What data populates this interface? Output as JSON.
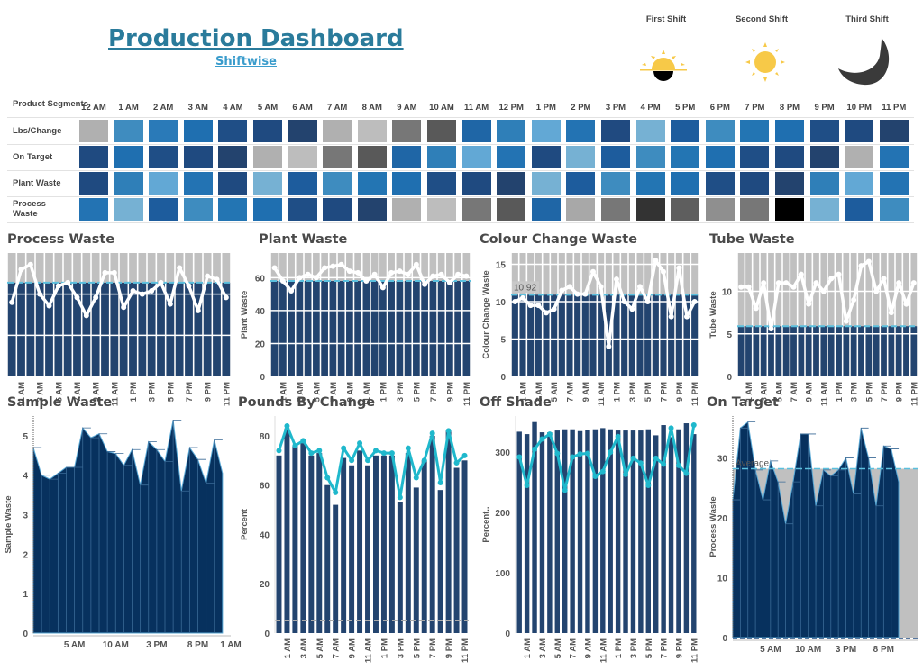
{
  "header": {
    "title": "Production Dashboard",
    "subtitle": "Shiftwise",
    "shifts": [
      {
        "label": "First Shift",
        "icon": "sunrise-icon"
      },
      {
        "label": "Second Shift",
        "icon": "sun-icon"
      },
      {
        "label": "Third Shift",
        "icon": "moon-icon"
      }
    ]
  },
  "heatmap": {
    "corner_label": "Product Segments",
    "hours": [
      "12 AM",
      "1 AM",
      "2 AM",
      "3 AM",
      "4 AM",
      "5 AM",
      "6 AM",
      "7 AM",
      "8 AM",
      "9 AM",
      "10 AM",
      "11 AM",
      "12 PM",
      "1 PM",
      "2 PM",
      "3 PM",
      "4 PM",
      "5 PM",
      "6 PM",
      "7 PM",
      "8 PM",
      "9 PM",
      "10 PM",
      "11 PM"
    ],
    "rows": [
      {
        "label": "Lbs/Change",
        "colors": [
          "#b0b0b0",
          "#3f8cbf",
          "#2a7ab8",
          "#1f6fb0",
          "#1f4e86",
          "#1f4a80",
          "#23436e",
          "#b0b0b0",
          "#bdbdbd",
          "#777777",
          "#595959",
          "#1f66a6",
          "#2f7fb8",
          "#62a8d5",
          "#2373b3",
          "#204a80",
          "#76b1d3",
          "#1d5c9d",
          "#3e8cbf",
          "#2375b3",
          "#1f6fb0",
          "#1f4e86",
          "#1f4a80",
          "#23436e"
        ]
      },
      {
        "label": "On Target",
        "colors": [
          "#1f4a80",
          "#1f6fb0",
          "#1f4e86",
          "#1f4a80",
          "#23436e",
          "#b0b0b0",
          "#bdbdbd",
          "#777777",
          "#595959",
          "#1f66a6",
          "#2f7fb8",
          "#62a8d5",
          "#2373b3",
          "#1f4a80",
          "#76b1d3",
          "#1d5c9d",
          "#3e8cbf",
          "#2375b3",
          "#1f6fb0",
          "#1f4e86",
          "#1f4a80",
          "#23436e",
          "#b0b0b0",
          "#2373b3"
        ]
      },
      {
        "label": "Plant Waste",
        "colors": [
          "#1f4a80",
          "#2f7fb8",
          "#62a8d5",
          "#2373b3",
          "#1f4a80",
          "#76b1d3",
          "#1d5c9d",
          "#3e8cbf",
          "#2375b3",
          "#1f6fb0",
          "#1f4e86",
          "#1f4a80",
          "#23436e",
          "#76b1d3",
          "#1d5c9d",
          "#3e8cbf",
          "#2375b3",
          "#1f6fb0",
          "#1f4e86",
          "#1f4a80",
          "#23436e",
          "#2f7fb8",
          "#62a8d5",
          "#2373b3"
        ]
      },
      {
        "label": "Process Waste",
        "colors": [
          "#2373b3",
          "#76b1d3",
          "#1d5c9d",
          "#3e8cbf",
          "#2375b3",
          "#1f6fb0",
          "#1f4e86",
          "#1f4a80",
          "#23436e",
          "#b0b0b0",
          "#bdbdbd",
          "#777777",
          "#595959",
          "#1f66a6",
          "#a8a8a8",
          "#777777",
          "#333333",
          "#5e5e5e",
          "#8f8f8f",
          "#777777",
          "#000000",
          "#76b1d3",
          "#1d5c9d",
          "#3e8cbf"
        ]
      }
    ]
  },
  "colors": {
    "bar": "#23446f",
    "area": "#07315e",
    "band": "#c0c0c0",
    "line_white": "#ffffff",
    "line_teal": "#1fb8cc",
    "ref": "#5bc0de"
  },
  "chart_data": [
    {
      "id": "process",
      "title": "Process Waste",
      "type": "bar+line",
      "style": "target",
      "ylabel": "",
      "ylim": [
        0,
        75
      ],
      "yticks": [],
      "grid": [
        25,
        50
      ],
      "x_ticks": [
        "1 AM",
        "3 AM",
        "5 AM",
        "7 AM",
        "9 AM",
        "11 AM",
        "1 PM",
        "3 PM",
        "5 PM",
        "7 PM",
        "9 PM",
        "11 PM"
      ],
      "bar_value": 57,
      "line": [
        45,
        65,
        68,
        50,
        43,
        55,
        57,
        48,
        37,
        48,
        63,
        63,
        42,
        52,
        50,
        52,
        57,
        44,
        66,
        55,
        40,
        61,
        59,
        48
      ]
    },
    {
      "id": "plant",
      "title": "Plant Waste",
      "type": "bar+line",
      "style": "target",
      "ylabel": "Plant Waste",
      "ylim": [
        0,
        75
      ],
      "yticks": [
        0,
        20,
        40,
        60
      ],
      "grid": [
        20,
        40,
        60
      ],
      "x_ticks": [
        "1 AM",
        "3 AM",
        "5 AM",
        "7 AM",
        "9 AM",
        "11 AM",
        "1 PM",
        "3 PM",
        "5 PM",
        "7 PM",
        "9 PM",
        "11 PM"
      ],
      "bar_value": 58,
      "line": [
        66,
        58,
        52,
        60,
        62,
        60,
        66,
        67,
        68,
        64,
        63,
        58,
        62,
        54,
        63,
        64,
        62,
        68,
        56,
        61,
        62,
        57,
        62,
        61
      ]
    },
    {
      "id": "colour",
      "title": "Colour Change Waste",
      "type": "bar+line",
      "style": "target",
      "ylabel": "Colour Change Waste",
      "ylim": [
        0,
        16.5
      ],
      "yticks": [
        0,
        5,
        10,
        15
      ],
      "grid": [
        5,
        10,
        15
      ],
      "x_ticks": [
        "1 AM",
        "3 AM",
        "5 AM",
        "7 AM",
        "9 AM",
        "11 AM",
        "1 PM",
        "3 PM",
        "5 PM",
        "7 PM",
        "9 PM",
        "11 PM"
      ],
      "bar_value": 10.92,
      "annotation": "10.92",
      "line": [
        10,
        10.5,
        9.5,
        9.5,
        8.5,
        9,
        11.5,
        12,
        11,
        11,
        14,
        12,
        4,
        13,
        10,
        9,
        12,
        10,
        15.5,
        14,
        8,
        14.5,
        8,
        10
      ]
    },
    {
      "id": "tube",
      "title": "Tube Waste",
      "type": "bar+line",
      "style": "target",
      "ylabel": "Tube Waste",
      "ylim": [
        0,
        14.5
      ],
      "yticks": [
        0,
        5,
        10
      ],
      "grid": [
        5,
        10
      ],
      "x_ticks": [
        "1 AM",
        "3 AM",
        "5 AM",
        "7 AM",
        "9 AM",
        "11 AM",
        "1 PM",
        "3 PM",
        "5 PM",
        "7 PM",
        "9 PM",
        "11 PM"
      ],
      "bar_value": 5.9,
      "line": [
        10.5,
        10.5,
        8,
        11,
        5.6,
        11,
        11,
        10.5,
        12,
        8.5,
        11,
        10,
        11.5,
        12,
        6.5,
        9,
        13,
        13.5,
        10,
        11.5,
        7.5,
        11,
        8.5,
        11
      ]
    },
    {
      "id": "sample",
      "title": "Sample Waste",
      "type": "area",
      "ylabel": "Sample Waste",
      "ylim": [
        0,
        5.5
      ],
      "yticks": [
        0,
        1,
        2,
        3,
        4,
        5
      ],
      "x_ticks": [
        "5 AM",
        "10 AM",
        "3 PM",
        "8 PM",
        "1 AM"
      ],
      "values": [
        4.7,
        4.0,
        3.9,
        4.05,
        4.2,
        4.2,
        5.2,
        4.95,
        5.05,
        4.6,
        4.55,
        4.25,
        4.65,
        3.75,
        4.85,
        4.65,
        4.35,
        5.4,
        3.6,
        4.7,
        4.4,
        3.8,
        4.9,
        4.05
      ]
    },
    {
      "id": "pounds",
      "title": "Pounds By Change",
      "type": "bar+line",
      "style": "plain",
      "ylabel": "Percent",
      "ylim": [
        0,
        88
      ],
      "yticks": [
        0,
        20,
        40,
        60,
        80
      ],
      "ref_value": 5,
      "x_ticks": [
        "1 AM",
        "3 AM",
        "5 AM",
        "7 AM",
        "9 AM",
        "11 AM",
        "1 PM",
        "3 PM",
        "5 PM",
        "7 PM",
        "9 PM",
        "11 PM"
      ],
      "bars": [
        72,
        83,
        76,
        77,
        72,
        73,
        60,
        52,
        71,
        68,
        74,
        68,
        72,
        72,
        72,
        53,
        73,
        59,
        70,
        80,
        58,
        82,
        67,
        70
      ],
      "line": [
        74,
        84,
        76,
        78,
        73,
        74,
        63,
        57,
        75,
        70,
        77,
        70,
        74,
        73,
        73,
        55,
        75,
        63,
        70,
        81,
        61,
        82,
        69,
        72
      ]
    },
    {
      "id": "offshade",
      "title": "Off Shade",
      "type": "bar+line",
      "style": "plain",
      "ylabel": "Percent..",
      "ylim": [
        0,
        360
      ],
      "yticks": [
        0,
        100,
        200,
        300
      ],
      "x_ticks": [
        "1 AM",
        "3 AM",
        "5 AM",
        "7 AM",
        "9 AM",
        "11 AM",
        "1 PM",
        "3 PM",
        "5 PM",
        "7 PM",
        "9 PM",
        "11 PM"
      ],
      "bars": [
        334,
        330,
        350,
        333,
        333,
        336,
        338,
        338,
        335,
        337,
        338,
        340,
        338,
        336,
        336,
        336,
        336,
        338,
        328,
        345,
        325,
        338,
        348,
        330
      ],
      "line": [
        292,
        245,
        305,
        322,
        330,
        298,
        237,
        292,
        297,
        298,
        260,
        268,
        300,
        326,
        263,
        290,
        282,
        245,
        290,
        280,
        340,
        278,
        265,
        345
      ]
    },
    {
      "id": "ontarget",
      "title": "On Target",
      "type": "area",
      "ylabel": "Process Waste",
      "ylim": [
        0,
        37
      ],
      "yticks": [
        0,
        10,
        20,
        30
      ],
      "x_ticks": [
        "5 AM",
        "10 AM",
        "3 PM",
        "8 PM"
      ],
      "average": 28.2,
      "average_label": "Average",
      "values": [
        23,
        35,
        36,
        28,
        23,
        29.5,
        26,
        19,
        26,
        34,
        34,
        22,
        28,
        27,
        28,
        30,
        24,
        35,
        30,
        22,
        32,
        31.5,
        26
      ]
    }
  ]
}
